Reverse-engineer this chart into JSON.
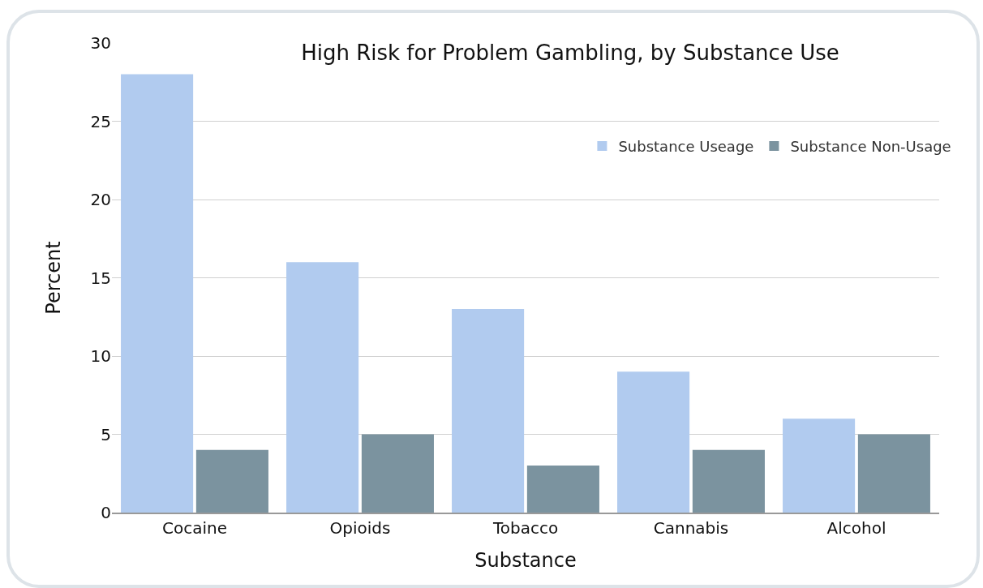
{
  "chart_data": {
    "type": "bar",
    "title": "High Risk for Problem Gambling, by Substance Use",
    "xlabel": "Substance",
    "ylabel": "Percent",
    "categories": [
      "Cocaine",
      "Opioids",
      "Tobacco",
      "Cannabis",
      "Alcohol"
    ],
    "series": [
      {
        "name": "Substance Useage",
        "color": "#b1cbef",
        "values": [
          28,
          16,
          13,
          9,
          6
        ]
      },
      {
        "name": "Substance Non-Usage",
        "color": "#7b939f",
        "values": [
          4,
          5,
          3,
          4,
          5
        ]
      }
    ],
    "ylim": [
      0,
      30
    ],
    "yticks": [
      0,
      5,
      10,
      15,
      20,
      25,
      30
    ],
    "grid": "y",
    "legend": "top right"
  }
}
